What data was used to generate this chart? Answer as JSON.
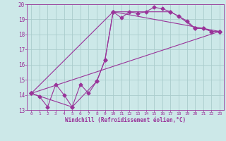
{
  "xlabel": "Windchill (Refroidissement éolien,°C)",
  "bg_color": "#cce8e8",
  "grid_color": "#aacccc",
  "line_color": "#993399",
  "xlim": [
    -0.5,
    23.5
  ],
  "ylim": [
    13,
    20
  ],
  "yticks": [
    13,
    14,
    15,
    16,
    17,
    18,
    19,
    20
  ],
  "xticks": [
    0,
    1,
    2,
    3,
    4,
    5,
    6,
    7,
    8,
    9,
    10,
    11,
    12,
    13,
    14,
    15,
    16,
    17,
    18,
    19,
    20,
    21,
    22,
    23
  ],
  "series1_x": [
    0,
    1,
    2,
    3,
    4,
    5,
    6,
    7,
    8,
    9,
    10,
    11,
    12,
    13,
    14,
    15,
    16,
    17,
    18,
    19,
    20,
    21,
    22,
    23
  ],
  "series1_y": [
    14.1,
    13.9,
    13.2,
    14.7,
    14.0,
    13.2,
    14.7,
    14.1,
    14.9,
    16.3,
    19.5,
    19.1,
    19.5,
    19.4,
    19.5,
    19.8,
    19.7,
    19.5,
    19.2,
    18.9,
    18.4,
    18.4,
    18.2,
    18.2
  ],
  "series2_x": [
    0,
    5,
    8,
    9,
    10,
    17,
    18,
    20,
    21,
    22,
    23
  ],
  "series2_y": [
    14.1,
    13.2,
    14.9,
    16.3,
    19.5,
    19.5,
    19.2,
    18.4,
    18.4,
    18.2,
    18.2
  ],
  "series3_x": [
    0,
    10,
    23
  ],
  "series3_y": [
    14.1,
    19.5,
    18.2
  ],
  "series4_x": [
    0,
    23
  ],
  "series4_y": [
    14.1,
    18.2
  ]
}
